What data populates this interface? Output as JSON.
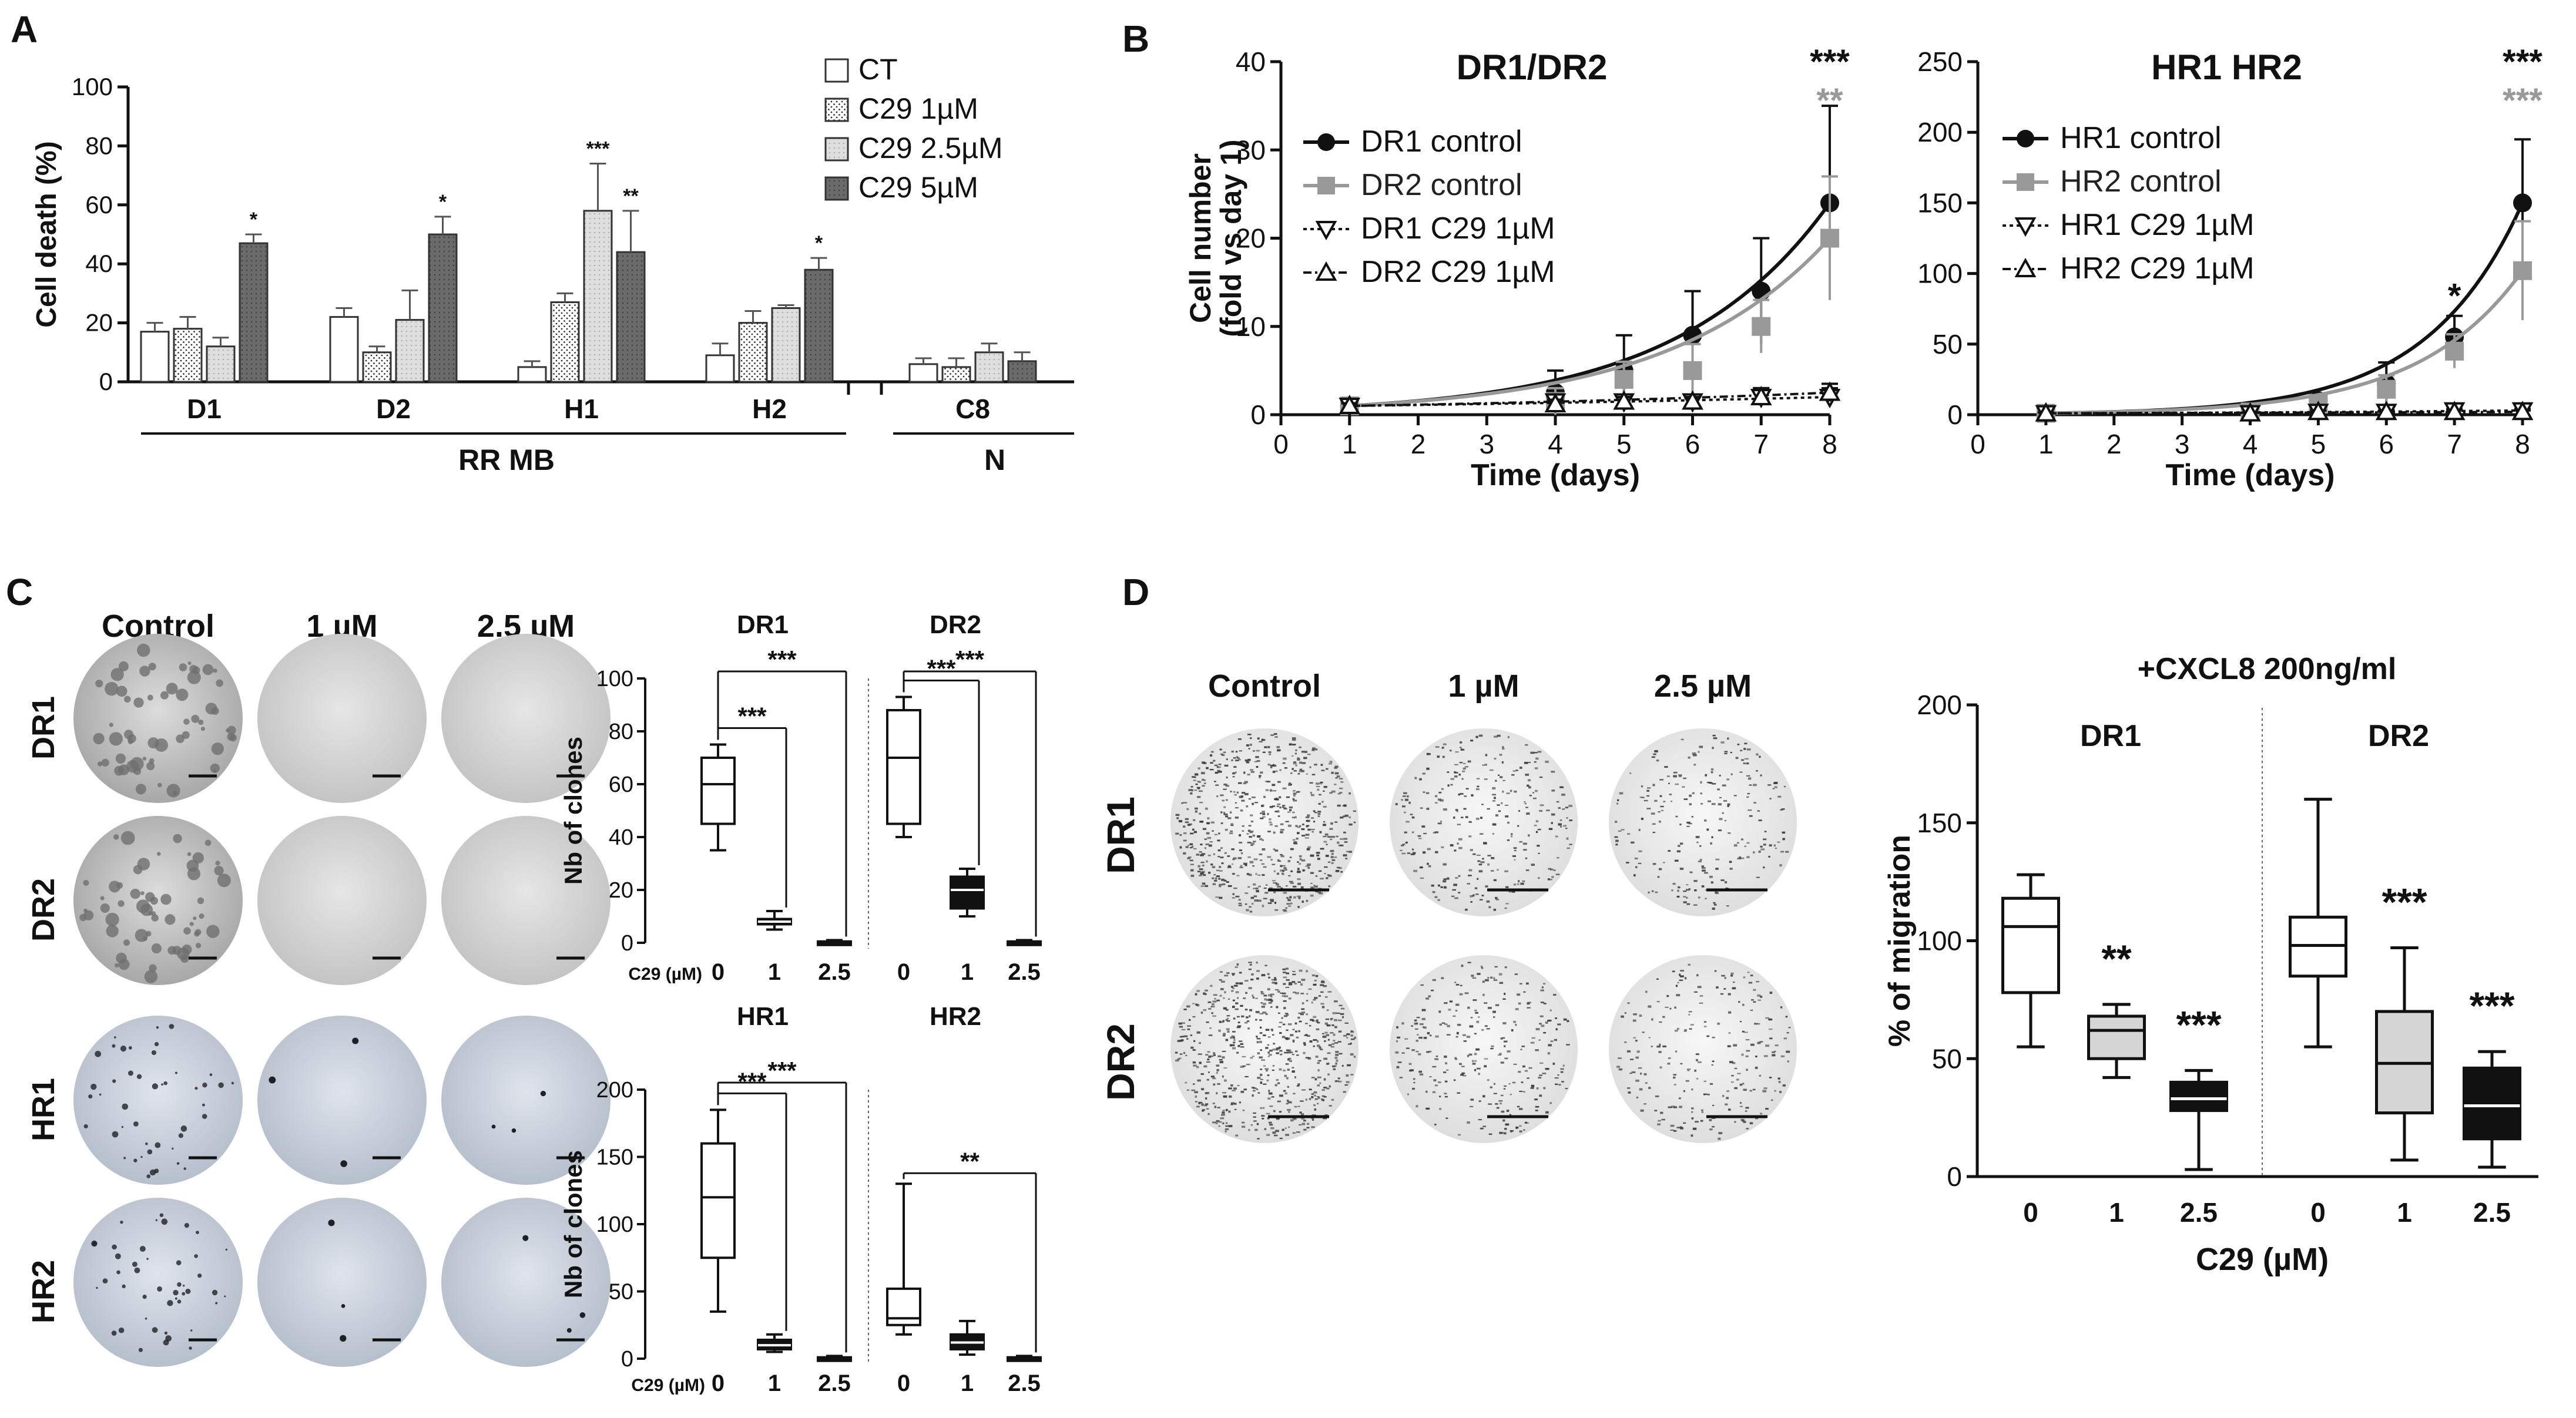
{
  "colors": {
    "black": "#111111",
    "grey": "#999999",
    "lightgrey": "#d6d6d6",
    "darkgrey": "#6e6e6e",
    "midgrey": "#bdbdbd"
  },
  "panels": {
    "A": "A",
    "B": "B",
    "C": "C",
    "D": "D"
  },
  "chart_data": [
    {
      "id": "A",
      "type": "bar",
      "ylabel": "Cell death (%)",
      "ylim": [
        0,
        100
      ],
      "yticks": [
        0,
        20,
        40,
        60,
        80,
        100
      ],
      "categories": [
        "D1",
        "D2",
        "H1",
        "H2",
        "C8"
      ],
      "groups": [
        {
          "label": "RR MB",
          "members": [
            "D1",
            "D2",
            "H1",
            "H2"
          ]
        },
        {
          "label": "N",
          "members": [
            "C8"
          ]
        }
      ],
      "series": [
        {
          "name": "CT",
          "pattern": "white",
          "values": [
            17,
            22,
            5,
            9,
            6
          ],
          "err": [
            3,
            3,
            2,
            4,
            2
          ]
        },
        {
          "name": "C29 1µM",
          "pattern": "dots",
          "values": [
            18,
            10,
            27,
            20,
            5
          ],
          "err": [
            4,
            2,
            3,
            4,
            3
          ]
        },
        {
          "name": "C29 2.5µM",
          "pattern": "light",
          "values": [
            12,
            21,
            58,
            25,
            10
          ],
          "err": [
            3,
            10,
            16,
            1,
            3
          ]
        },
        {
          "name": "C29 5µM",
          "pattern": "dark",
          "values": [
            47,
            50,
            44,
            38,
            7
          ],
          "err": [
            3,
            6,
            14,
            4,
            3
          ]
        }
      ],
      "significance": [
        {
          "cat": "D1",
          "series": 3,
          "label": "*"
        },
        {
          "cat": "D2",
          "series": 3,
          "label": "*"
        },
        {
          "cat": "H1",
          "series": 2,
          "label": "***"
        },
        {
          "cat": "H1",
          "series": 3,
          "label": "**"
        },
        {
          "cat": "H2",
          "series": 3,
          "label": "*"
        }
      ]
    },
    {
      "id": "B1",
      "type": "line",
      "title": "DR1/DR2",
      "xlabel": "Time (days)",
      "ylabel": [
        "Cell number",
        "(fold vs day 1)"
      ],
      "xlim": [
        0,
        8
      ],
      "ylim": [
        0,
        40
      ],
      "yticks": [
        0,
        10,
        20,
        30,
        40
      ],
      "xticks": [
        0,
        1,
        2,
        3,
        4,
        5,
        6,
        7,
        8
      ],
      "series": [
        {
          "name": "DR1 control",
          "marker": "circle",
          "color": "black",
          "x": [
            1,
            4,
            5,
            6,
            7,
            8
          ],
          "y": [
            1,
            2.5,
            5,
            9,
            14,
            24
          ],
          "err": [
            0.5,
            2.5,
            4,
            5,
            6,
            11
          ]
        },
        {
          "name": "DR2 control",
          "marker": "square",
          "color": "grey",
          "x": [
            1,
            4,
            5,
            6,
            7,
            8
          ],
          "y": [
            1,
            1.5,
            4,
            5,
            10,
            20
          ],
          "err": [
            0.5,
            1.5,
            2,
            3,
            3,
            7
          ]
        },
        {
          "name": "DR1 C29 1µM",
          "marker": "tri-down",
          "color": "black",
          "x": [
            1,
            4,
            5,
            6,
            7,
            8
          ],
          "y": [
            1,
            1.5,
            1.5,
            1.5,
            2,
            2
          ],
          "err": [
            0.3,
            0.5,
            0.5,
            0.5,
            1,
            1
          ]
        },
        {
          "name": "DR2 C29 1µM",
          "marker": "tri-up",
          "color": "black",
          "x": [
            1,
            4,
            5,
            6,
            7,
            8
          ],
          "y": [
            1,
            1.2,
            1.5,
            1.5,
            2,
            2.5
          ],
          "err": [
            0.3,
            0.5,
            0.5,
            0.5,
            1,
            1
          ]
        }
      ],
      "significance": [
        {
          "x": 8,
          "label": "***",
          "color": "black"
        },
        {
          "x": 8,
          "label": "**",
          "color": "grey"
        }
      ]
    },
    {
      "id": "B2",
      "type": "line",
      "title": "HR1 HR2",
      "xlabel": "Time (days)",
      "ylabel": [],
      "xlim": [
        0,
        8
      ],
      "ylim": [
        0,
        250
      ],
      "yticks": [
        0,
        50,
        100,
        150,
        200,
        250
      ],
      "xticks": [
        0,
        1,
        2,
        3,
        4,
        5,
        6,
        7,
        8
      ],
      "series": [
        {
          "name": "HR1 control",
          "marker": "circle",
          "color": "black",
          "x": [
            1,
            4,
            5,
            6,
            7,
            8
          ],
          "y": [
            1,
            3,
            10,
            22,
            55,
            150
          ],
          "err": [
            1,
            2,
            4,
            15,
            15,
            45
          ]
        },
        {
          "name": "HR2 control",
          "marker": "square",
          "color": "grey",
          "x": [
            1,
            4,
            5,
            6,
            7,
            8
          ],
          "y": [
            1,
            2,
            8,
            18,
            45,
            102
          ],
          "err": [
            1,
            2,
            3,
            10,
            12,
            35
          ]
        },
        {
          "name": "HR1 C29 1µM",
          "marker": "tri-down",
          "color": "black",
          "x": [
            1,
            4,
            5,
            6,
            7,
            8
          ],
          "y": [
            1,
            1,
            2,
            2,
            3,
            3
          ],
          "err": [
            0.5,
            0.5,
            1,
            1,
            1,
            1
          ]
        },
        {
          "name": "HR2 C29 1µM",
          "marker": "tri-up",
          "color": "black",
          "x": [
            1,
            4,
            5,
            6,
            7,
            8
          ],
          "y": [
            1,
            1,
            2,
            2,
            2,
            2
          ],
          "err": [
            0.5,
            0.5,
            1,
            1,
            1,
            1
          ]
        }
      ],
      "significance": [
        {
          "x": 7,
          "label": "*",
          "color": "black"
        },
        {
          "x": 8,
          "label": "***",
          "color": "black"
        },
        {
          "x": 8,
          "label": "***",
          "color": "grey"
        }
      ]
    },
    {
      "id": "C",
      "type": "image-grid",
      "columns": [
        "Control",
        "1 µM",
        "2.5 µM"
      ],
      "rows": [
        "DR1",
        "DR2",
        "HR1",
        "HR2"
      ]
    },
    {
      "id": "C-top",
      "type": "box",
      "ylabel": "Nb of clones",
      "ylim": [
        0,
        100
      ],
      "yticks": [
        0,
        20,
        40,
        60,
        80,
        100
      ],
      "xaxis_title": "C29 (µM)",
      "groups": [
        {
          "title": "DR1",
          "categories": [
            "0",
            "1",
            "2.5"
          ],
          "boxes": [
            {
              "min": 35,
              "q1": 45,
              "median": 60,
              "q3": 70,
              "max": 75,
              "fill": "white"
            },
            {
              "min": 5,
              "q1": 7,
              "median": 8,
              "q3": 9,
              "max": 12,
              "fill": "black"
            },
            {
              "min": 0,
              "q1": 0,
              "median": 0,
              "q3": 0.5,
              "max": 1,
              "fill": "grey"
            }
          ],
          "significance": [
            {
              "to": "1",
              "label": "***"
            },
            {
              "to": "2.5",
              "label": "***"
            }
          ]
        },
        {
          "title": "DR2",
          "categories": [
            "0",
            "1",
            "2.5"
          ],
          "boxes": [
            {
              "min": 40,
              "q1": 45,
              "median": 70,
              "q3": 88,
              "max": 93,
              "fill": "white"
            },
            {
              "min": 10,
              "q1": 13,
              "median": 20,
              "q3": 25,
              "max": 28,
              "fill": "black"
            },
            {
              "min": 0,
              "q1": 0,
              "median": 0,
              "q3": 0.5,
              "max": 1,
              "fill": "grey"
            }
          ],
          "significance": [
            {
              "to": "1",
              "label": "***"
            },
            {
              "to": "2.5",
              "label": "***"
            }
          ]
        }
      ]
    },
    {
      "id": "C-bottom",
      "type": "box",
      "ylabel": "Nb of clones",
      "ylim": [
        0,
        200
      ],
      "yticks": [
        0,
        50,
        100,
        150,
        200
      ],
      "xaxis_title": "C29 (µM)",
      "groups": [
        {
          "title": "HR1",
          "categories": [
            "0",
            "1",
            "2.5"
          ],
          "boxes": [
            {
              "min": 35,
              "q1": 75,
              "median": 120,
              "q3": 160,
              "max": 185,
              "fill": "white"
            },
            {
              "min": 5,
              "q1": 7,
              "median": 10,
              "q3": 14,
              "max": 18,
              "fill": "black"
            },
            {
              "min": 0,
              "q1": 0,
              "median": 0,
              "q3": 1,
              "max": 2,
              "fill": "grey"
            }
          ],
          "significance": [
            {
              "to": "1",
              "label": "***"
            },
            {
              "to": "2.5",
              "label": "***"
            }
          ]
        },
        {
          "title": "HR2",
          "categories": [
            "0",
            "1",
            "2.5"
          ],
          "boxes": [
            {
              "min": 18,
              "q1": 25,
              "median": 30,
              "q3": 52,
              "max": 130,
              "fill": "white"
            },
            {
              "min": 3,
              "q1": 7,
              "median": 12,
              "q3": 18,
              "max": 28,
              "fill": "black"
            },
            {
              "min": 0,
              "q1": 0,
              "median": 0,
              "q3": 1,
              "max": 2,
              "fill": "grey"
            }
          ],
          "significance": [
            {
              "to": "2.5",
              "label": "**"
            }
          ]
        }
      ]
    },
    {
      "id": "D-images",
      "type": "image-grid",
      "columns": [
        "Control",
        "1 µM",
        "2.5 µM"
      ],
      "rows": [
        "DR1",
        "DR2"
      ]
    },
    {
      "id": "D",
      "type": "box",
      "title": "+CXCL8 200ng/ml",
      "ylabel": "% of migration",
      "xlabel": "C29 (µM)",
      "ylim": [
        0,
        200
      ],
      "yticks": [
        0,
        50,
        100,
        150,
        200
      ],
      "groups": [
        {
          "title": "DR1",
          "categories": [
            "0",
            "1",
            "2.5"
          ],
          "boxes": [
            {
              "min": 55,
              "q1": 78,
              "median": 106,
              "q3": 118,
              "max": 128,
              "fill": "white"
            },
            {
              "min": 42,
              "q1": 50,
              "median": 62,
              "q3": 68,
              "max": 73,
              "fill": "lightgrey"
            },
            {
              "min": 3,
              "q1": 28,
              "median": 33,
              "q3": 40,
              "max": 45,
              "fill": "black"
            }
          ],
          "significance": [
            "",
            "**",
            "***"
          ]
        },
        {
          "title": "DR2",
          "categories": [
            "0",
            "1",
            "2.5"
          ],
          "boxes": [
            {
              "min": 55,
              "q1": 85,
              "median": 98,
              "q3": 110,
              "max": 160,
              "fill": "white"
            },
            {
              "min": 7,
              "q1": 27,
              "median": 48,
              "q3": 70,
              "max": 97,
              "fill": "lightgrey"
            },
            {
              "min": 4,
              "q1": 16,
              "median": 30,
              "q3": 46,
              "max": 53,
              "fill": "black"
            }
          ],
          "significance": [
            "",
            "***",
            "***"
          ]
        }
      ]
    }
  ]
}
